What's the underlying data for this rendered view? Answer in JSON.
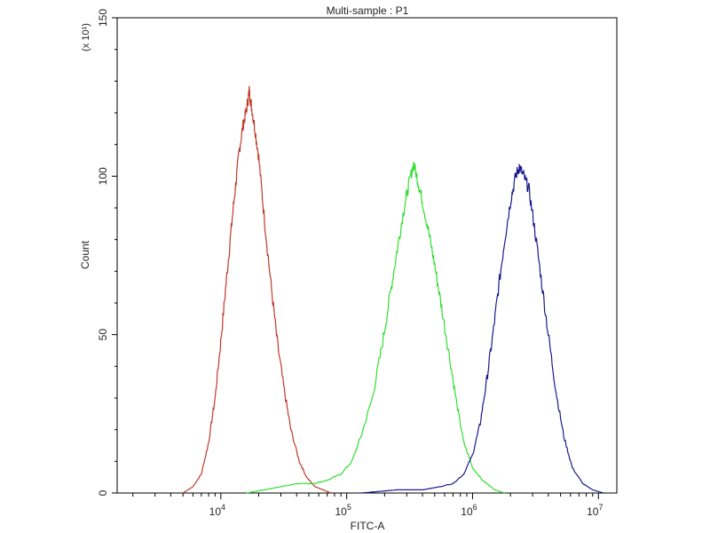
{
  "chart_data": {
    "type": "line",
    "title": "Multi-sample : P1",
    "xlabel": "FITC-A",
    "ylabel": "Count",
    "ylabel_multiplier": "(x 10¹)",
    "x_scale": "log",
    "xlim": [
      1500,
      14000000
    ],
    "ylim": [
      0,
      150
    ],
    "yticks": [
      0,
      50,
      100,
      150
    ],
    "xticks": [
      {
        "value": 10000,
        "base": "10",
        "exp": "4"
      },
      {
        "value": 100000,
        "base": "10",
        "exp": "5"
      },
      {
        "value": 1000000,
        "base": "10",
        "exp": "6"
      },
      {
        "value": 10000000,
        "base": "10",
        "exp": "7"
      }
    ],
    "grid": false,
    "series": [
      {
        "color": "#c0392b",
        "points": [
          [
            5000,
            0
          ],
          [
            6000,
            2
          ],
          [
            7000,
            6
          ],
          [
            8000,
            16
          ],
          [
            9000,
            30
          ],
          [
            10000,
            48
          ],
          [
            11000,
            66
          ],
          [
            12000,
            82
          ],
          [
            13000,
            96
          ],
          [
            14000,
            108
          ],
          [
            15000,
            116
          ],
          [
            16000,
            121
          ],
          [
            16800,
            127
          ],
          [
            17500,
            122
          ],
          [
            18500,
            116
          ],
          [
            20000,
            106
          ],
          [
            22000,
            88
          ],
          [
            25000,
            66
          ],
          [
            28000,
            48
          ],
          [
            32000,
            32
          ],
          [
            36000,
            20
          ],
          [
            42000,
            10
          ],
          [
            48000,
            5
          ],
          [
            56000,
            2
          ],
          [
            65000,
            1
          ],
          [
            75000,
            0
          ]
        ]
      },
      {
        "color": "#33dd33",
        "points": [
          [
            16000,
            0
          ],
          [
            22000,
            1
          ],
          [
            30000,
            2
          ],
          [
            40000,
            3
          ],
          [
            55000,
            3
          ],
          [
            70000,
            4
          ],
          [
            90000,
            6
          ],
          [
            110000,
            10
          ],
          [
            130000,
            18
          ],
          [
            160000,
            30
          ],
          [
            190000,
            46
          ],
          [
            220000,
            62
          ],
          [
            250000,
            76
          ],
          [
            280000,
            88
          ],
          [
            310000,
            97
          ],
          [
            340000,
            104
          ],
          [
            370000,
            98
          ],
          [
            400000,
            92
          ],
          [
            450000,
            82
          ],
          [
            500000,
            72
          ],
          [
            560000,
            60
          ],
          [
            650000,
            44
          ],
          [
            750000,
            28
          ],
          [
            850000,
            16
          ],
          [
            1000000,
            8
          ],
          [
            1200000,
            4
          ],
          [
            1500000,
            1
          ],
          [
            1800000,
            0
          ]
        ]
      },
      {
        "color": "#1a1a8c",
        "points": [
          [
            130000,
            0
          ],
          [
            250000,
            1
          ],
          [
            400000,
            1
          ],
          [
            550000,
            2
          ],
          [
            700000,
            3
          ],
          [
            850000,
            6
          ],
          [
            1000000,
            12
          ],
          [
            1150000,
            22
          ],
          [
            1300000,
            36
          ],
          [
            1450000,
            50
          ],
          [
            1600000,
            64
          ],
          [
            1800000,
            80
          ],
          [
            2000000,
            92
          ],
          [
            2200000,
            100
          ],
          [
            2350000,
            103
          ],
          [
            2550000,
            100
          ],
          [
            2800000,
            96
          ],
          [
            3100000,
            84
          ],
          [
            3500000,
            68
          ],
          [
            4000000,
            50
          ],
          [
            4600000,
            32
          ],
          [
            5300000,
            18
          ],
          [
            6200000,
            8
          ],
          [
            7500000,
            3
          ],
          [
            9000000,
            1
          ],
          [
            11000000,
            0
          ]
        ]
      }
    ]
  }
}
